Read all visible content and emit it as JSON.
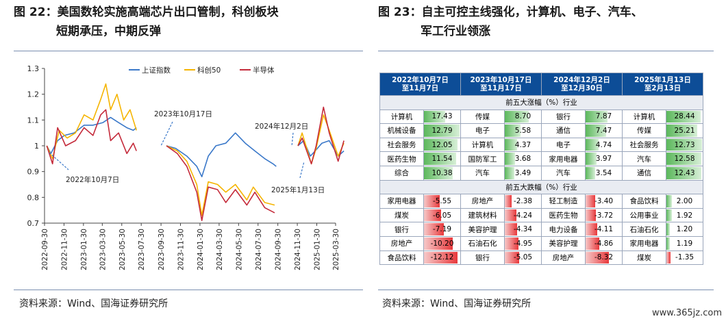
{
  "left_figure": {
    "title_prefix": "图 22：",
    "title_line1": "美国数轮实施高端芯片出口管制，科创板块",
    "title_line2": "短期承压，中期反弹",
    "source": "资料来源：Wind、国海证券研究所"
  },
  "right_figure": {
    "title_prefix": "图 23：",
    "title_line1": "自主可控主线强化，计算机、电子、汽车、",
    "title_line2": "军工行业领涨",
    "source": "资料来源：Wind、国海证券研究所"
  },
  "watermark": "www.365jz.com",
  "chart_data": {
    "type": "line",
    "ylim": [
      0.7,
      1.3
    ],
    "yticks": [
      "0.7",
      "0.8",
      "0.9",
      "1",
      "1.1",
      "1.2",
      "1.3"
    ],
    "xticks": [
      "2022-09-30",
      "2022-11-30",
      "2023-01-30",
      "2023-03-30",
      "2023-05-30",
      "2023-07-30",
      "2023-09-30",
      "2023-11-30",
      "2024-01-30",
      "2024-03-30",
      "2024-05-30",
      "2024-07-30",
      "2024-09-30",
      "2024-11-30",
      "2025-01-30",
      "2025-03-30"
    ],
    "legend_position": "top",
    "colors": {
      "上证指数": "#3a78c9",
      "科创50": "#f5b400",
      "半导体": "#c42a3a"
    },
    "annotations": [
      "2022年10月7日",
      "2023年10月17日",
      "2024年12月2日",
      "2025年1月13日"
    ],
    "series": [
      {
        "name": "上证指数",
        "segments": [
          [
            [
              "2022-10-07",
              1.0
            ],
            [
              "2022-10-20",
              0.97
            ],
            [
              "2022-11-10",
              1.02
            ],
            [
              "2022-12-01",
              1.04
            ],
            [
              "2023-01-01",
              1.05
            ],
            [
              "2023-02-01",
              1.08
            ],
            [
              "2023-03-01",
              1.08
            ],
            [
              "2023-04-01",
              1.09
            ],
            [
              "2023-04-25",
              1.11
            ],
            [
              "2023-05-20",
              1.09
            ],
            [
              "2023-06-15",
              1.07
            ],
            [
              "2023-07-05",
              1.06
            ],
            [
              "2023-07-15",
              1.07
            ]
          ],
          [
            [
              "2023-10-17",
              1.0
            ],
            [
              "2023-11-15",
              0.99
            ],
            [
              "2023-12-20",
              0.96
            ],
            [
              "2024-01-20",
              0.92
            ],
            [
              "2024-02-05",
              0.88
            ],
            [
              "2024-02-25",
              0.96
            ],
            [
              "2024-03-20",
              1.0
            ],
            [
              "2024-04-20",
              1.01
            ],
            [
              "2024-05-20",
              1.05
            ],
            [
              "2024-06-20",
              1.01
            ],
            [
              "2024-07-20",
              0.98
            ],
            [
              "2024-08-20",
              0.95
            ],
            [
              "2024-09-15",
              0.93
            ],
            [
              "2024-09-25",
              0.92
            ]
          ],
          [
            [
              "2024-12-02",
              1.0
            ],
            [
              "2024-12-20",
              1.02
            ],
            [
              "2025-01-10",
              0.96
            ],
            [
              "2025-01-25",
              0.98
            ],
            [
              "2025-02-15",
              1.01
            ],
            [
              "2025-03-10",
              1.02
            ],
            [
              "2025-04-07",
              0.96
            ],
            [
              "2025-04-25",
              0.98
            ]
          ]
        ]
      },
      {
        "name": "科创50",
        "segments": [
          [
            [
              "2022-10-07",
              1.0
            ],
            [
              "2022-10-25",
              0.95
            ],
            [
              "2022-11-15",
              1.06
            ],
            [
              "2022-12-10",
              1.03
            ],
            [
              "2023-01-05",
              1.05
            ],
            [
              "2023-02-01",
              1.12
            ],
            [
              "2023-03-01",
              1.1
            ],
            [
              "2023-03-25",
              1.18
            ],
            [
              "2023-04-10",
              1.24
            ],
            [
              "2023-04-25",
              1.14
            ],
            [
              "2023-05-15",
              1.2
            ],
            [
              "2023-06-05",
              1.1
            ],
            [
              "2023-06-25",
              1.14
            ],
            [
              "2023-07-15",
              1.06
            ]
          ],
          [
            [
              "2023-10-17",
              1.0
            ],
            [
              "2023-11-20",
              0.98
            ],
            [
              "2023-12-20",
              0.94
            ],
            [
              "2024-01-20",
              0.85
            ],
            [
              "2024-02-05",
              0.73
            ],
            [
              "2024-02-25",
              0.86
            ],
            [
              "2024-03-25",
              0.85
            ],
            [
              "2024-04-20",
              0.82
            ],
            [
              "2024-05-20",
              0.85
            ],
            [
              "2024-06-25",
              0.79
            ],
            [
              "2024-07-15",
              0.84
            ],
            [
              "2024-08-20",
              0.78
            ],
            [
              "2024-09-20",
              0.77
            ]
          ],
          [
            [
              "2024-12-02",
              1.0
            ],
            [
              "2024-12-15",
              1.05
            ],
            [
              "2025-01-13",
              0.93
            ],
            [
              "2025-01-28",
              0.99
            ],
            [
              "2025-02-20",
              1.12
            ],
            [
              "2025-03-10",
              1.06
            ],
            [
              "2025-04-07",
              0.96
            ],
            [
              "2025-04-25",
              1.01
            ]
          ]
        ]
      },
      {
        "name": "半导体",
        "segments": [
          [
            [
              "2022-10-07",
              1.0
            ],
            [
              "2022-10-25",
              0.93
            ],
            [
              "2022-11-10",
              1.07
            ],
            [
              "2022-12-05",
              1.0
            ],
            [
              "2023-01-05",
              1.02
            ],
            [
              "2023-02-01",
              1.07
            ],
            [
              "2023-03-01",
              1.04
            ],
            [
              "2023-03-25",
              1.12
            ],
            [
              "2023-04-10",
              1.14
            ],
            [
              "2023-04-25",
              1.02
            ],
            [
              "2023-05-20",
              1.05
            ],
            [
              "2023-06-15",
              0.97
            ],
            [
              "2023-07-05",
              1.01
            ],
            [
              "2023-07-15",
              0.98
            ]
          ],
          [
            [
              "2023-10-17",
              1.0
            ],
            [
              "2023-11-20",
              0.97
            ],
            [
              "2023-12-20",
              0.92
            ],
            [
              "2024-01-20",
              0.82
            ],
            [
              "2024-02-05",
              0.71
            ],
            [
              "2024-02-25",
              0.84
            ],
            [
              "2024-03-25",
              0.83
            ],
            [
              "2024-04-20",
              0.78
            ],
            [
              "2024-05-20",
              0.83
            ],
            [
              "2024-06-25",
              0.77
            ],
            [
              "2024-07-20",
              0.82
            ],
            [
              "2024-08-20",
              0.76
            ],
            [
              "2024-09-20",
              0.74
            ]
          ],
          [
            [
              "2024-12-02",
              1.0
            ],
            [
              "2024-12-15",
              1.03
            ],
            [
              "2025-01-13",
              0.93
            ],
            [
              "2025-01-28",
              1.0
            ],
            [
              "2025-02-20",
              1.15
            ],
            [
              "2025-03-10",
              1.05
            ],
            [
              "2025-04-07",
              0.94
            ],
            [
              "2025-04-25",
              1.02
            ]
          ]
        ]
      }
    ]
  },
  "table": {
    "type": "table",
    "periods": [
      {
        "line1": "2022年10月7日",
        "line2": "至11月7日"
      },
      {
        "line1": "2023年10月17日",
        "line2": "至11月17日"
      },
      {
        "line1": "2024年12月2日",
        "line2": "至12月30日"
      },
      {
        "line1": "2025年1月13日",
        "line2": "至2月13日"
      }
    ],
    "top_label": "前五大涨幅（%）行业",
    "bottom_label": "前五大跌幅（%）行业",
    "top": [
      [
        [
          "计算机",
          17.43
        ],
        [
          "传媒",
          8.7
        ],
        [
          "银行",
          7.87
        ],
        [
          "计算机",
          28.44
        ]
      ],
      [
        [
          "机械设备",
          12.79
        ],
        [
          "电子",
          5.58
        ],
        [
          "通信",
          7.47
        ],
        [
          "传媒",
          25.21
        ]
      ],
      [
        [
          "社会服务",
          12.05
        ],
        [
          "计算机",
          4.37
        ],
        [
          "电子",
          4.74
        ],
        [
          "社会服务",
          12.73
        ]
      ],
      [
        [
          "医药生物",
          11.54
        ],
        [
          "国防军工",
          3.68
        ],
        [
          "家用电器",
          3.97
        ],
        [
          "汽车",
          12.58
        ]
      ],
      [
        [
          "综合",
          10.38
        ],
        [
          "汽车",
          3.49
        ],
        [
          "汽车",
          3.54
        ],
        [
          "通信",
          12.43
        ]
      ]
    ],
    "bottom": [
      [
        [
          "家用电器",
          -5.55
        ],
        [
          "房地产",
          -2.38
        ],
        [
          "轻工制造",
          -3.4
        ],
        [
          "食品饮料",
          2.0
        ]
      ],
      [
        [
          "煤炭",
          -6.05
        ],
        [
          "建筑材料",
          -4.24
        ],
        [
          "医药生物",
          -3.72
        ],
        [
          "公用事业",
          1.92
        ]
      ],
      [
        [
          "银行",
          -7.19
        ],
        [
          "美容护理",
          -4.34
        ],
        [
          "电力设备",
          -4.11
        ],
        [
          "石油石化",
          1.2
        ]
      ],
      [
        [
          "房地产",
          -10.2
        ],
        [
          "石油石化",
          -4.95
        ],
        [
          "美容护理",
          -4.86
        ],
        [
          "家用电器",
          1.19
        ]
      ],
      [
        [
          "食品饮料",
          -12.12
        ],
        [
          "银行",
          -5.05
        ],
        [
          "房地产",
          -8.32
        ],
        [
          "煤炭",
          -1.35
        ]
      ]
    ]
  }
}
